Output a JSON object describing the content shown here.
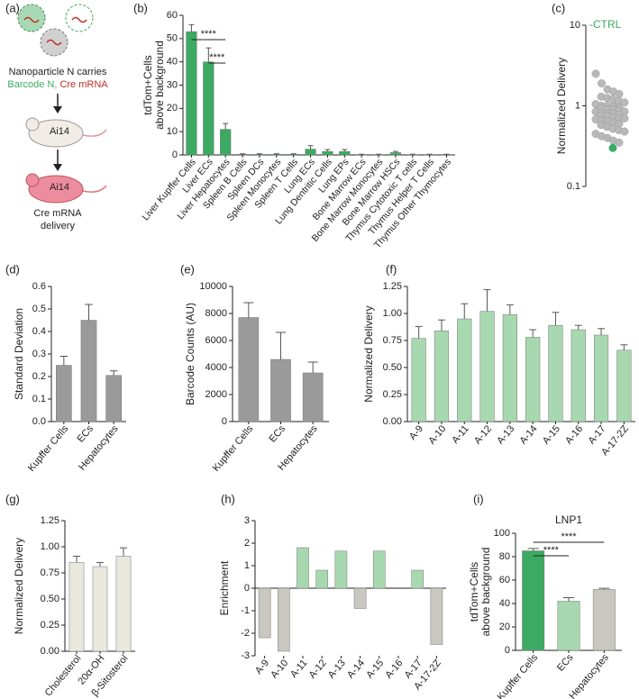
{
  "panel_labels": [
    "(a)",
    "(b)",
    "(c)",
    "(d)",
    "(e)",
    "(f)",
    "(g)",
    "(h)",
    "(i)"
  ],
  "diagram": {
    "caption": "Nanoparticle N carries",
    "barcode": "Barcode N,",
    "cre": "Cre mRNA",
    "mouse1": "Ai14",
    "mouse2": "Ai14",
    "result": [
      "Cre mRNA",
      "delivery"
    ]
  },
  "chart_data": [
    {
      "type": "bar",
      "ylabel": [
        "tdTom+Cells",
        "above background"
      ],
      "categories": [
        "Liver Kupffer Cells",
        "Liver ECs",
        "Liver Hepatocytes",
        "Spleen B Cells",
        "Spleen DCs",
        "Spleen Monocytes",
        "Spleen T Cells",
        "Lung ECs",
        "Lung Dentritic Cells",
        "Lung EPs",
        "Bone Marrow ECs",
        "Bone Marrow Monocytes",
        "Bone Marrow HSCs",
        "Thymus Cytotoxic T cells",
        "Thymus Helper T Cells",
        "Thymus Other Thymocytes"
      ],
      "values": [
        53,
        40,
        11,
        0.3,
        0.3,
        0.3,
        0.3,
        2.5,
        1.5,
        1.5,
        0.2,
        0.2,
        1,
        0.2,
        0.2,
        0.2
      ],
      "errors": [
        3,
        6,
        2.5,
        0.2,
        0.2,
        0.2,
        0.2,
        1.5,
        0.8,
        0.8,
        0.1,
        0.1,
        0.5,
        0.1,
        0.1,
        0.1
      ],
      "color": "#3daa63",
      "ylim": [
        0,
        60
      ],
      "yticks": [
        0,
        10,
        20,
        30,
        40,
        50,
        60
      ],
      "annotations": [
        "****",
        "****"
      ]
    },
    {
      "type": "swarm",
      "ylabel": "Normalized Delivery",
      "log": true,
      "ylim": [
        0.1,
        10
      ],
      "yticks": [
        0.1,
        1,
        10
      ],
      "annotation": "-CTRL",
      "annotation_color": "#3daa63",
      "values": [
        2.5,
        1.9,
        1.6,
        1.5,
        1.4,
        1.3,
        1.25,
        1.2,
        1.15,
        1.1,
        1.05,
        1.0,
        1.0,
        0.98,
        0.95,
        0.93,
        0.9,
        0.9,
        0.88,
        0.85,
        0.85,
        0.82,
        0.8,
        0.8,
        0.78,
        0.76,
        0.75,
        0.72,
        0.7,
        0.7,
        0.68,
        0.66,
        0.65,
        0.62,
        0.6,
        0.58,
        0.55,
        0.52,
        0.5,
        0.48,
        0.45,
        0.42,
        0.4,
        0.37,
        0.35
      ],
      "color": "#b9b9b9",
      "highlight": 0.3,
      "highlight_color": "#3daa63"
    },
    {
      "type": "bar",
      "ylabel": "Standard Deviation",
      "categories": [
        "Kupffer Cells",
        "ECs",
        "Hepatocytes"
      ],
      "values": [
        0.25,
        0.45,
        0.205
      ],
      "errors": [
        0.04,
        0.07,
        0.02
      ],
      "color": "#9a9a9a",
      "ylim": [
        0,
        0.6
      ],
      "yticks": [
        {
          "value": 0,
          "label": "0.0"
        },
        0.1,
        0.2,
        0.3,
        0.4,
        0.5,
        0.6
      ]
    },
    {
      "type": "bar",
      "ylabel": "Barcode Counts (AU)",
      "categories": [
        "Kupffer Cells",
        "ECs",
        "Hepatocytes"
      ],
      "values": [
        7700,
        4600,
        3600
      ],
      "errors": [
        1100,
        2000,
        800
      ],
      "color": "#9a9a9a",
      "ylim": [
        0,
        10000
      ],
      "yticks": [
        0,
        2000,
        4000,
        6000,
        8000,
        10000
      ]
    },
    {
      "type": "bar",
      "ylabel": "Normalized Delivery",
      "categories": [
        "A-9",
        "A-10",
        "A-11",
        "A-12",
        "A-13",
        "A-14",
        "A-15",
        "A-16",
        "A-17",
        "A-17-2Z"
      ],
      "values": [
        0.77,
        0.84,
        0.95,
        1.02,
        0.99,
        0.78,
        0.89,
        0.85,
        0.8,
        0.66
      ],
      "errors": [
        0.11,
        0.1,
        0.14,
        0.2,
        0.09,
        0.07,
        0.12,
        0.04,
        0.06,
        0.05
      ],
      "color": "#a8d8b0",
      "ylim": [
        0,
        1.25
      ],
      "yticks": [
        {
          "value": 0,
          "label": "0.00"
        },
        {
          "value": 0.25,
          "label": "0.25"
        },
        {
          "value": 0.5,
          "label": "0.50"
        },
        {
          "value": 0.75,
          "label": "0.75"
        },
        {
          "value": 1,
          "label": "1.00"
        },
        {
          "value": 1.25,
          "label": "1.25"
        }
      ]
    },
    {
      "type": "bar",
      "ylabel": "Normalized Delivery",
      "categories": [
        "Cholesterol",
        "20α-OH",
        "β-Sitosterol"
      ],
      "values": [
        0.85,
        0.81,
        0.91
      ],
      "errors": [
        0.06,
        0.04,
        0.08
      ],
      "color": "#e8e8df",
      "ylim": [
        0,
        1.25
      ],
      "yticks": [
        {
          "value": 0,
          "label": "0.00"
        },
        {
          "value": 0.25,
          "label": "0.25"
        },
        {
          "value": 0.5,
          "label": "0.50"
        },
        {
          "value": 0.75,
          "label": "0.75"
        },
        {
          "value": 1,
          "label": "1.00"
        },
        {
          "value": 1.25,
          "label": "1.25"
        }
      ]
    },
    {
      "type": "bar",
      "ylabel": "Enrichment",
      "categories": [
        "A-9",
        "A-10",
        "A-11",
        "A-12",
        "A-13",
        "A-14",
        "A-15",
        "A-16",
        "A-17",
        "A-17-2Z"
      ],
      "values": [
        -2.2,
        -2.8,
        1.8,
        0.8,
        1.65,
        -0.9,
        1.65,
        0,
        0.8,
        -2.5
      ],
      "colors": [
        "#c8c8c0",
        "#c8c8c0",
        "#a8d8b0",
        "#a8d8b0",
        "#a8d8b0",
        "#c8c8c0",
        "#a8d8b0",
        "#a8d8b0",
        "#a8d8b0",
        "#c8c8c0"
      ],
      "ylim": [
        -3,
        3
      ],
      "yticks": [
        -3,
        -2,
        -1,
        0,
        1,
        2,
        3
      ]
    },
    {
      "type": "bar",
      "title": "LNP1",
      "ylabel": [
        "tdTom+Cells",
        "above background"
      ],
      "categories": [
        "Kupffer Cells",
        "ECs",
        "Hepatocytes"
      ],
      "values": [
        85,
        42,
        52
      ],
      "errors": [
        2,
        3,
        1
      ],
      "colors": [
        "#3daa63",
        "#a8d8b0",
        "#c8c8c0"
      ],
      "ylim": [
        0,
        100
      ],
      "yticks": [
        0,
        20,
        40,
        60,
        80,
        100
      ],
      "annotations": [
        "****",
        "****"
      ]
    }
  ]
}
